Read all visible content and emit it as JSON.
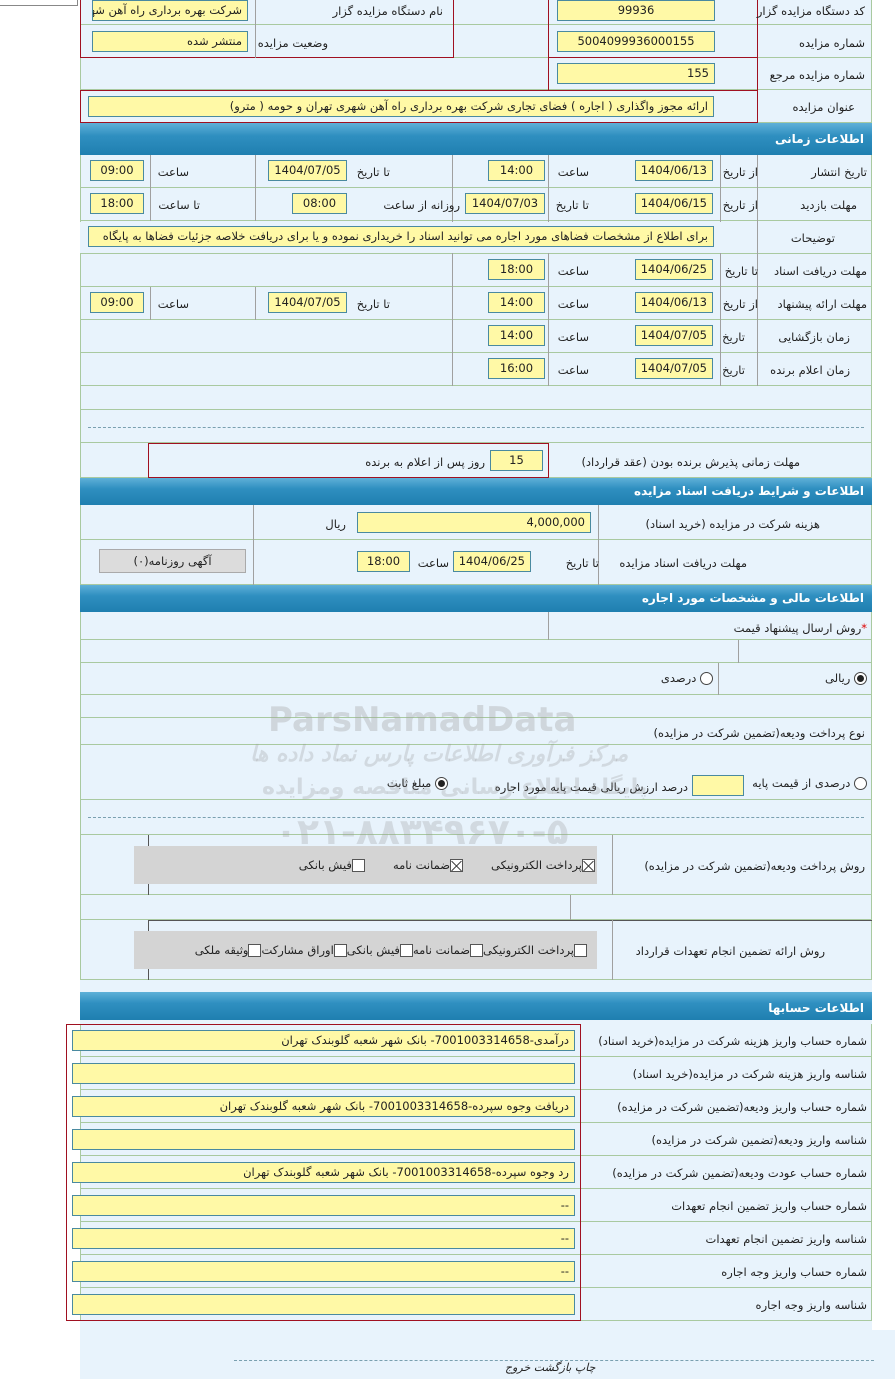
{
  "general": {
    "org_code_label": "کد دستگاه مزایده گزار",
    "org_code": "99936",
    "org_name_label": "نام دستگاه مزایده گزار",
    "org_name": "شرکت بهره برداری راه آهن شهری تهران و حومه",
    "auction_no_label": "شماره مزایده",
    "auction_no": "5004099936000155",
    "status_label": "وضعیت مزایده",
    "status": "منتشر شده",
    "ref_no_label": "شماره مزایده مرجع",
    "ref_no": "155",
    "title_label": "عنوان مزایده",
    "title": "ارائه مجوز واگذاری ( اجاره ) فضای تجاری شرکت بهره برداری راه آهن شهری تهران و حومه ( مترو)"
  },
  "timing": {
    "header": "اطلاعات زمانی",
    "from_date": "از تاریخ",
    "to_date": "تا تاریخ",
    "time": "ساعت",
    "date": "تاریخ",
    "to_time": "تا ساعت",
    "daily_from": "روزانه از ساعت",
    "publish_label": "تاریخ انتشار",
    "publish_from": "1404/06/13",
    "publish_from_time": "14:00",
    "publish_to": "1404/07/05",
    "publish_to_time": "09:00",
    "visit_label": "مهلت بازدید",
    "visit_from": "1404/06/15",
    "visit_to": "1404/07/03",
    "visit_daily_from": "08:00",
    "visit_daily_to": "18:00",
    "desc_label": "توضیحات",
    "desc": "برای اطلاع از مشخصات فضاهای مورد اجاره می توانید اسناد را خریداری نموده و یا برای دریافت خلاصه جزئیات فضاها به پایگاه",
    "doc_label": "مهلت دریافت اسناد",
    "doc_to": "1404/06/25",
    "doc_to_time": "18:00",
    "offer_label": "مهلت ارائه پیشنهاد",
    "offer_from": "1404/06/13",
    "offer_from_time": "14:00",
    "offer_to": "1404/07/05",
    "offer_to_time": "09:00",
    "open_label": "زمان بازگشایی",
    "open_date": "1404/07/05",
    "open_time": "14:00",
    "winner_label": "زمان اعلام برنده",
    "winner_date": "1404/07/05",
    "winner_time": "16:00",
    "accept_label": "مهلت زمانی پذیرش برنده بودن (عقد قرارداد)",
    "accept_days": "15",
    "accept_suffix": "روز پس از اعلام به برنده"
  },
  "docs": {
    "header": "اطلاعات و شرایط دریافت اسناد مزایده",
    "fee_label": "هزینه شرکت در مزایده (خرید اسناد)",
    "fee": "4,000,000",
    "currency": "ریال",
    "deadline_label": "مهلت دریافت اسناد مزایده",
    "to_date": "تا تاریخ",
    "date": "1404/06/25",
    "time_label": "ساعت",
    "time": "18:00",
    "ad_button": "آگهی روزنامه(۰)"
  },
  "finance": {
    "header": "اطلاعات مالی و مشخصات مورد اجاره",
    "method_label": "روش ارسال پیشنهاد قیمت",
    "required": "*",
    "rial": "ریالی",
    "percent": "درصدی",
    "deposit_type_label": "نوع پرداخت ودیعه(تضمین شرکت در مزایده)",
    "deposit_percent": "درصدی از قیمت پایه",
    "deposit_percent_text": "درصد ارزش ریالی قیمت پایه مورد اجاره",
    "deposit_fixed": "مبلغ ثابت",
    "deposit_method_label": "روش پرداخت ودیعه(تضمین شرکت در مزایده)",
    "deposit_methods": [
      {
        "label": "پرداخت الکترونیکی",
        "checked": true
      },
      {
        "label": "ضمانت نامه",
        "checked": true
      },
      {
        "label": "فیش بانکی",
        "checked": false
      }
    ],
    "guarantee_label": "روش ارائه تضمین انجام تعهدات قرارداد",
    "guarantee_methods": [
      {
        "label": "پرداخت الکترونیکی",
        "checked": false
      },
      {
        "label": "ضمانت نامه",
        "checked": false
      },
      {
        "label": "فیش بانکی",
        "checked": false
      },
      {
        "label": "اوراق مشارکت",
        "checked": false
      },
      {
        "label": "وثیقه ملکی",
        "checked": false
      }
    ]
  },
  "accounts": {
    "header": "اطلاعات حسابها",
    "rows": [
      {
        "label": "شماره حساب واریز هزینه شرکت در مزایده(خرید اسناد)",
        "value": "درآمدی-7001003314658- بانک شهر شعبه گلوبندک تهران"
      },
      {
        "label": "شناسه واریز هزینه شرکت در مزایده(خرید اسناد)",
        "value": ""
      },
      {
        "label": "شماره حساب واریز ودیعه(تضمین شرکت در مزایده)",
        "value": "دریافت وجوه سپرده-7001003314658- بانک شهر شعبه گلوبندک تهران"
      },
      {
        "label": "شناسه واریز ودیعه(تضمین شرکت در مزایده)",
        "value": ""
      },
      {
        "label": "شماره حساب عودت ودیعه(تضمین شرکت در مزایده)",
        "value": "رد وجوه سپرده-7001003314658- بانک شهر شعبه گلوبندک تهران"
      },
      {
        "label": "شماره حساب واریز تضمین انجام تعهدات",
        "value": "--"
      },
      {
        "label": "شناسه واریز تضمین انجام تعهدات",
        "value": "--"
      },
      {
        "label": "شماره حساب واریز وجه اجاره",
        "value": "--"
      },
      {
        "label": "شناسه واریز وجه اجاره",
        "value": ""
      }
    ]
  },
  "footer": {
    "print": "چاپ",
    "back": "بازگشت",
    "exit": "خروج"
  },
  "watermark": {
    "brand": "ParsNamadData",
    "line1": "مرکز فرآوری اطلاعات پارس نماد داده ها",
    "line2": "پایگاه اطلاع رسانی مناقصه ومزایده",
    "phone": "۰۲۱-۸۸۳۴۹۶۷۰-۵"
  }
}
